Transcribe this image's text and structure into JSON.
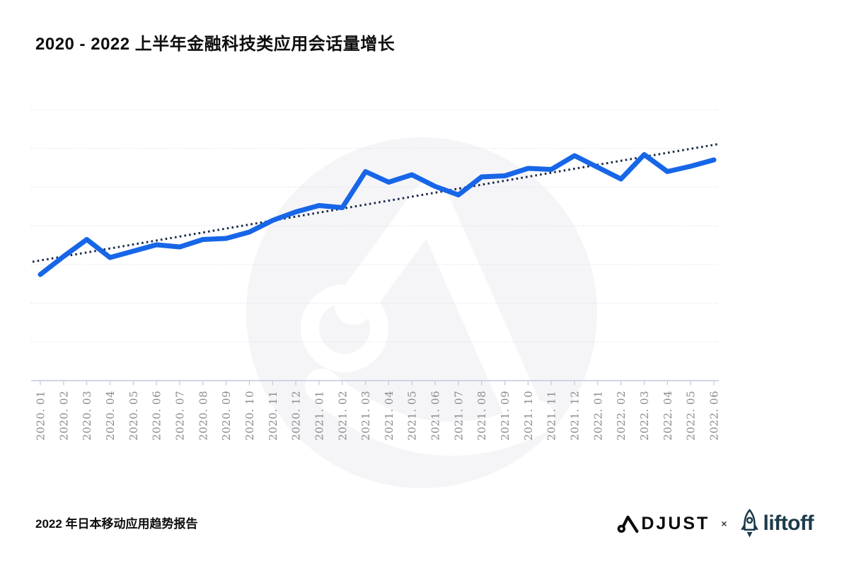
{
  "page": {
    "title": "2020 - 2022 上半年金融科技类应用会话量增长",
    "footer": {
      "source": "2022 年日本移动应用趋势报告",
      "partnership": {
        "adjust": "ADJUST",
        "separator": "×",
        "liftoff": "liftoff"
      }
    }
  },
  "icons": {
    "adjust_a_icon": "adjust-triangle-loop-a",
    "liftoff_rocket_icon": "rocket-outline",
    "watermark_icon": "adjust-circle-a-watermark"
  },
  "colors": {
    "background": "#ffffff",
    "title_text": "#0e0e10",
    "line_blue": "#1766e8",
    "trend_navy": "#1b2a4a",
    "gridline": "#d9ddeb",
    "axis": "#c2c8de",
    "tick_label": "#8c8c8e",
    "watermark_gray": "#f5f5f8",
    "adjust_black": "#0b0b0d",
    "liftoff_teal": "#1c3a4a",
    "separator_gray": "#3c4043"
  },
  "chart_data": {
    "type": "line",
    "title": "2020 - 2022 上半年金融科技类应用会话量增长",
    "x_categories": [
      "2020. 01",
      "2020. 02",
      "2020. 03",
      "2020. 04",
      "2020. 05",
      "2020. 06",
      "2020. 07",
      "2020. 08",
      "2020. 09",
      "2020. 10",
      "2020. 11",
      "2020. 12",
      "2021. 01",
      "2021. 02",
      "2021. 03",
      "2021. 04",
      "2021. 05",
      "2021. 06",
      "2021. 07",
      "2021. 08",
      "2021. 09",
      "2021. 10",
      "2021. 11",
      "2021. 12",
      "2022. 01",
      "2022. 02",
      "2022. 03",
      "2022. 04",
      "2022. 05",
      "2022. 06"
    ],
    "series": [
      {
        "name": "sessions-line",
        "style": "solid",
        "color": "#1766e8",
        "values": [
          100,
          117,
          133,
          116,
          122,
          128,
          126,
          133,
          134,
          140,
          151,
          159,
          165,
          163,
          197,
          187,
          194,
          183,
          175,
          192,
          193,
          200,
          199,
          212,
          201,
          190,
          213,
          197,
          202,
          208
        ]
      },
      {
        "name": "trend-line",
        "style": "dotted",
        "color": "#1b2a4a",
        "endpoints": {
          "start": 112,
          "end": 223
        }
      }
    ],
    "y_axis": {
      "visible": false,
      "range": [
        0,
        255
      ],
      "unit": "session index (first month = 100, values estimated from plot)"
    },
    "x_axis": {
      "tick_marks": true,
      "label_rotation_deg": -90
    },
    "grid": {
      "horizontal_lines": 8,
      "vertical_lines": 0
    },
    "legend": {
      "visible": false
    }
  }
}
